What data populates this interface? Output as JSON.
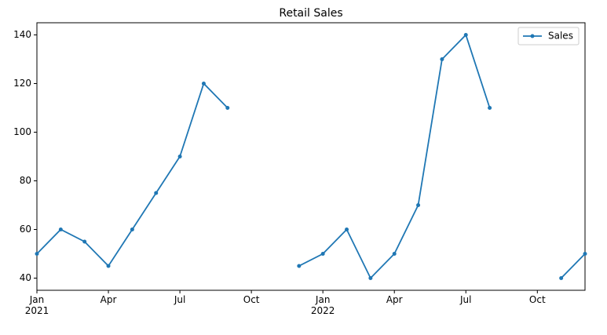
{
  "chart_data": {
    "type": "line",
    "title": "Retail Sales",
    "x": [
      "2021-01",
      "2021-02",
      "2021-03",
      "2021-04",
      "2021-05",
      "2021-06",
      "2021-07",
      "2021-08",
      "2021-09",
      "2021-10",
      "2021-11",
      "2021-12",
      "2022-01",
      "2022-02",
      "2022-03",
      "2022-04",
      "2022-05",
      "2022-06",
      "2022-07",
      "2022-08",
      "2022-09",
      "2022-10",
      "2022-11",
      "2022-12"
    ],
    "series": [
      {
        "name": "Sales",
        "color": "#1f77b4",
        "values": [
          50,
          60,
          55,
          45,
          60,
          75,
          90,
          120,
          110,
          null,
          null,
          45,
          50,
          60,
          40,
          50,
          70,
          130,
          140,
          110,
          null,
          null,
          40,
          50
        ]
      }
    ],
    "xlim": [
      "2021-01",
      "2022-12"
    ],
    "xticks": [
      {
        "value": "2021-01",
        "label": "Jan\n2021"
      },
      {
        "value": "2021-04",
        "label": "Apr"
      },
      {
        "value": "2021-07",
        "label": "Jul"
      },
      {
        "value": "2021-10",
        "label": "Oct"
      },
      {
        "value": "2022-01",
        "label": "Jan\n2022"
      },
      {
        "value": "2022-04",
        "label": "Apr"
      },
      {
        "value": "2022-07",
        "label": "Jul"
      },
      {
        "value": "2022-10",
        "label": "Oct"
      }
    ],
    "ylim": [
      35,
      145
    ],
    "yticks": [
      40,
      60,
      80,
      100,
      120,
      140
    ],
    "legend": "upper right",
    "grid": false
  }
}
